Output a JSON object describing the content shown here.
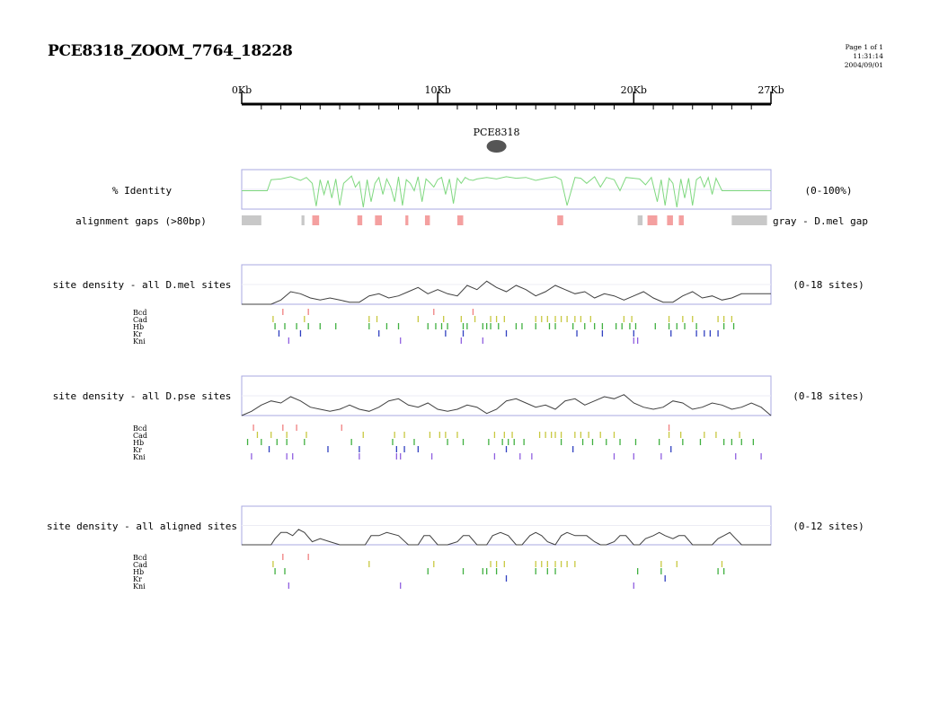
{
  "page": {
    "title": "PCE8318_ZOOM_7764_18228",
    "page_info": "Page 1 of 1",
    "time": "11:31:14",
    "date": "2004/09/01"
  },
  "colors": {
    "identity_line": "#7fd87f",
    "gap_dmel": "#c8c8c8",
    "gap_other": "#f4a0a0",
    "density_line": "#404040",
    "panel_border": "#a8a8e0",
    "Bcd": "#f08080",
    "Cad": "#c8c840",
    "Hb": "#40b040",
    "Kr": "#3040c0",
    "Kni": "#9060e0"
  },
  "chart_data": {
    "type": "line",
    "ruler": {
      "ticks": [
        "0Kb",
        "10Kb",
        "20Kb",
        "27Kb"
      ],
      "xlim": [
        0,
        27
      ],
      "unit": "Kb"
    },
    "element": {
      "label": "PCE8318",
      "x": 13
    },
    "identity": {
      "label": "% Identity",
      "range_label": "(0-100%)",
      "ylim": [
        0,
        100
      ],
      "x": [
        0.0,
        1.3,
        1.5,
        2.0,
        2.5,
        3.0,
        3.3,
        3.6,
        3.8,
        4.0,
        4.2,
        4.4,
        4.6,
        4.8,
        5.0,
        5.2,
        5.4,
        5.6,
        5.8,
        6.0,
        6.2,
        6.4,
        6.6,
        6.8,
        7.0,
        7.2,
        7.4,
        7.6,
        7.8,
        8.0,
        8.2,
        8.4,
        8.6,
        8.8,
        9.0,
        9.2,
        9.4,
        9.6,
        9.8,
        10.0,
        10.2,
        10.4,
        10.6,
        10.8,
        11.0,
        11.2,
        11.4,
        11.6,
        11.8,
        12.0,
        12.5,
        13.0,
        13.5,
        14.0,
        14.5,
        15.0,
        15.5,
        16.0,
        16.3,
        16.6,
        17.0,
        17.3,
        17.6,
        18.0,
        18.3,
        18.6,
        19.0,
        19.3,
        19.6,
        20.0,
        20.3,
        20.6,
        20.9,
        21.2,
        21.4,
        21.6,
        21.8,
        22.0,
        22.2,
        22.4,
        22.6,
        22.8,
        23.0,
        23.2,
        23.4,
        23.6,
        23.8,
        24.0,
        24.2,
        24.5,
        25.0,
        25.5,
        26.0,
        27.0
      ],
      "values": [
        50,
        50,
        80,
        82,
        88,
        78,
        86,
        70,
        8,
        80,
        40,
        78,
        30,
        82,
        10,
        70,
        80,
        90,
        60,
        75,
        5,
        80,
        20,
        70,
        86,
        40,
        82,
        60,
        20,
        88,
        10,
        80,
        70,
        50,
        88,
        20,
        82,
        72,
        60,
        80,
        86,
        40,
        82,
        15,
        84,
        70,
        86,
        80,
        78,
        82,
        86,
        82,
        88,
        84,
        86,
        78,
        84,
        88,
        80,
        10,
        86,
        84,
        70,
        88,
        60,
        86,
        80,
        50,
        86,
        84,
        82,
        66,
        86,
        20,
        80,
        10,
        84,
        70,
        5,
        82,
        30,
        84,
        10,
        80,
        88,
        60,
        86,
        40,
        84,
        50,
        50,
        50,
        50,
        50
      ]
    },
    "gaps": {
      "label": "alignment gaps (>80bp)",
      "right_label": "gray - D.mel gap",
      "dmel_gaps": [
        [
          0.0,
          1.0
        ],
        [
          3.05,
          3.2
        ],
        [
          20.2,
          20.45
        ],
        [
          25.0,
          26.8
        ]
      ],
      "other_gaps": [
        [
          3.6,
          3.95
        ],
        [
          5.9,
          6.15
        ],
        [
          6.8,
          7.15
        ],
        [
          8.35,
          8.5
        ],
        [
          9.35,
          9.6
        ],
        [
          11.0,
          11.3
        ],
        [
          16.1,
          16.4
        ],
        [
          20.7,
          21.2
        ],
        [
          21.7,
          22.0
        ],
        [
          22.3,
          22.55
        ]
      ]
    },
    "sections": [
      {
        "label": "site density - all D.mel sites",
        "range_label": "(0-18 sites)",
        "ylim": [
          0,
          18
        ],
        "x": [
          0,
          1.0,
          1.5,
          2.0,
          2.5,
          3.0,
          3.5,
          4.0,
          4.5,
          5.0,
          5.5,
          6.0,
          6.5,
          7.0,
          7.5,
          8.0,
          8.5,
          9.0,
          9.5,
          10.0,
          10.5,
          11.0,
          11.5,
          12.0,
          12.5,
          13.0,
          13.5,
          14.0,
          14.5,
          15.0,
          15.5,
          16.0,
          16.5,
          17.0,
          17.5,
          18.0,
          18.5,
          19.0,
          19.5,
          20.0,
          20.5,
          21.0,
          21.5,
          22.0,
          22.5,
          23.0,
          23.5,
          24.0,
          24.5,
          25.0,
          25.5,
          26.0,
          27.0
        ],
        "density": [
          0,
          0,
          0,
          2,
          6,
          5,
          3,
          2,
          3,
          2,
          1,
          1,
          4,
          5,
          3,
          4,
          6,
          8,
          5,
          7,
          5,
          4,
          9,
          7,
          11,
          8,
          6,
          9,
          7,
          4,
          6,
          9,
          7,
          5,
          6,
          3,
          5,
          4,
          2,
          4,
          6,
          3,
          1,
          1,
          4,
          6,
          3,
          4,
          2,
          3,
          5,
          5,
          5
        ],
        "tracks": {
          "Bcd": [
            2.1,
            3.4,
            9.8,
            11.8
          ],
          "Cad": [
            1.6,
            3.2,
            6.5,
            6.9,
            9.0,
            10.3,
            11.2,
            11.9,
            12.7,
            13.0,
            13.4,
            15.0,
            15.3,
            15.6,
            16.0,
            16.3,
            16.6,
            17.0,
            17.3,
            17.8,
            19.5,
            19.9,
            21.8,
            22.5,
            23.0,
            24.3,
            24.6,
            25.0
          ],
          "Hb": [
            1.7,
            2.2,
            2.8,
            3.4,
            4.0,
            4.8,
            6.5,
            7.4,
            8.0,
            9.5,
            9.9,
            10.2,
            10.5,
            11.3,
            11.5,
            12.3,
            12.5,
            12.7,
            13.1,
            14.0,
            14.3,
            15.0,
            15.7,
            16.0,
            16.9,
            17.5,
            18.0,
            18.4,
            19.1,
            19.4,
            19.8,
            20.1,
            21.1,
            21.8,
            22.2,
            22.6,
            23.2,
            24.6,
            25.1
          ],
          "Kr": [
            1.9,
            3.0,
            7.0,
            10.4,
            11.3,
            13.5,
            17.1,
            18.4,
            20.0,
            21.9,
            23.2,
            23.6,
            23.9,
            24.3
          ],
          "Kni": [
            2.4,
            8.1,
            11.2,
            12.3,
            20.0,
            20.2
          ]
        }
      },
      {
        "label": "site density - all D.pse sites",
        "range_label": "(0-18 sites)",
        "ylim": [
          0,
          18
        ],
        "x": [
          0,
          0.5,
          1.0,
          1.5,
          2.0,
          2.5,
          3.0,
          3.5,
          4.0,
          4.5,
          5.0,
          5.5,
          6.0,
          6.5,
          7.0,
          7.5,
          8.0,
          8.5,
          9.0,
          9.5,
          10.0,
          10.5,
          11.0,
          11.5,
          12.0,
          12.5,
          13.0,
          13.5,
          14.0,
          14.5,
          15.0,
          15.5,
          16.0,
          16.5,
          17.0,
          17.5,
          18.0,
          18.5,
          19.0,
          19.5,
          20.0,
          20.5,
          21.0,
          21.5,
          22.0,
          22.5,
          23.0,
          23.5,
          24.0,
          24.5,
          25.0,
          25.5,
          26.0,
          26.5,
          27.0
        ],
        "density": [
          0,
          2,
          5,
          7,
          6,
          9,
          7,
          4,
          3,
          2,
          3,
          5,
          3,
          2,
          4,
          7,
          8,
          5,
          4,
          6,
          3,
          2,
          3,
          5,
          4,
          1,
          3,
          7,
          8,
          6,
          4,
          5,
          3,
          7,
          8,
          5,
          7,
          9,
          8,
          10,
          6,
          4,
          3,
          4,
          7,
          6,
          3,
          4,
          6,
          5,
          3,
          4,
          6,
          4,
          0
        ],
        "tracks": {
          "Bcd": [
            0.6,
            2.1,
            2.8,
            5.1,
            21.8
          ],
          "Cad": [
            0.8,
            1.5,
            2.3,
            3.3,
            6.2,
            7.8,
            8.3,
            9.6,
            10.1,
            10.4,
            11.0,
            12.9,
            13.4,
            13.8,
            15.2,
            15.5,
            15.8,
            16.0,
            16.3,
            17.0,
            17.3,
            17.7,
            18.3,
            19.0,
            21.8,
            22.4,
            23.6,
            24.2,
            25.4
          ],
          "Hb": [
            0.3,
            1.0,
            1.8,
            2.3,
            3.2,
            5.6,
            7.7,
            8.8,
            10.5,
            11.3,
            12.6,
            13.3,
            13.6,
            13.9,
            14.4,
            16.3,
            17.4,
            17.9,
            18.6,
            19.3,
            20.1,
            21.3,
            22.5,
            23.4,
            24.6,
            25.0,
            25.5,
            26.1
          ],
          "Kr": [
            1.4,
            4.4,
            6.0,
            7.9,
            8.3,
            9.0,
            13.5,
            16.9,
            21.9
          ],
          "Kni": [
            0.5,
            2.3,
            2.6,
            6.0,
            7.9,
            8.1,
            9.7,
            12.9,
            14.2,
            14.8,
            19.0,
            20.0,
            21.4,
            25.2,
            26.5
          ]
        }
      },
      {
        "label": "site density - all aligned sites",
        "range_label": "(0-12 sites)",
        "ylim": [
          0,
          12
        ],
        "x": [
          0,
          1.5,
          1.7,
          2.0,
          2.3,
          2.6,
          2.9,
          3.2,
          3.6,
          4.0,
          4.5,
          5.0,
          5.5,
          6.3,
          6.6,
          7.0,
          7.4,
          8.0,
          8.5,
          9.0,
          9.3,
          9.6,
          10.0,
          10.5,
          11.0,
          11.3,
          11.6,
          12.0,
          12.5,
          12.8,
          13.2,
          13.6,
          14.0,
          14.3,
          14.7,
          15.0,
          15.3,
          15.6,
          16.0,
          16.3,
          16.6,
          17.0,
          17.3,
          17.6,
          18.0,
          18.3,
          18.6,
          19.0,
          19.3,
          19.6,
          20.0,
          20.3,
          20.6,
          21.0,
          21.3,
          21.6,
          22.0,
          22.3,
          22.6,
          23.0,
          23.5,
          24.0,
          24.3,
          24.6,
          24.9,
          25.2,
          25.5,
          27.0
        ],
        "density": [
          0,
          0,
          2,
          4,
          4,
          3,
          5,
          4,
          1,
          2,
          1,
          0,
          0,
          0,
          3,
          3,
          4,
          3,
          0,
          0,
          3,
          3,
          0,
          0,
          1,
          3,
          3,
          0,
          0,
          3,
          4,
          3,
          0,
          0,
          3,
          4,
          3,
          1,
          0,
          3,
          4,
          3,
          3,
          3,
          1,
          0,
          0,
          1,
          3,
          3,
          0,
          0,
          2,
          3,
          4,
          3,
          2,
          3,
          3,
          0,
          0,
          0,
          2,
          3,
          4,
          2,
          0,
          0
        ],
        "tracks": {
          "Bcd": [
            2.1,
            3.4
          ],
          "Cad": [
            1.6,
            6.5,
            9.8,
            12.7,
            13.0,
            13.4,
            15.0,
            15.3,
            15.6,
            16.0,
            16.3,
            16.6,
            17.0,
            21.4,
            22.2,
            24.5
          ],
          "Hb": [
            1.7,
            2.2,
            9.5,
            11.3,
            12.3,
            12.5,
            13.0,
            15.0,
            15.6,
            16.0,
            20.2,
            21.4,
            24.3,
            24.6
          ],
          "Kr": [
            13.5,
            21.6
          ],
          "Kni": [
            2.4,
            8.1,
            20.0
          ]
        }
      }
    ],
    "track_labels": [
      "Bcd",
      "Cad",
      "Hb",
      "Kr",
      "Kni"
    ]
  }
}
